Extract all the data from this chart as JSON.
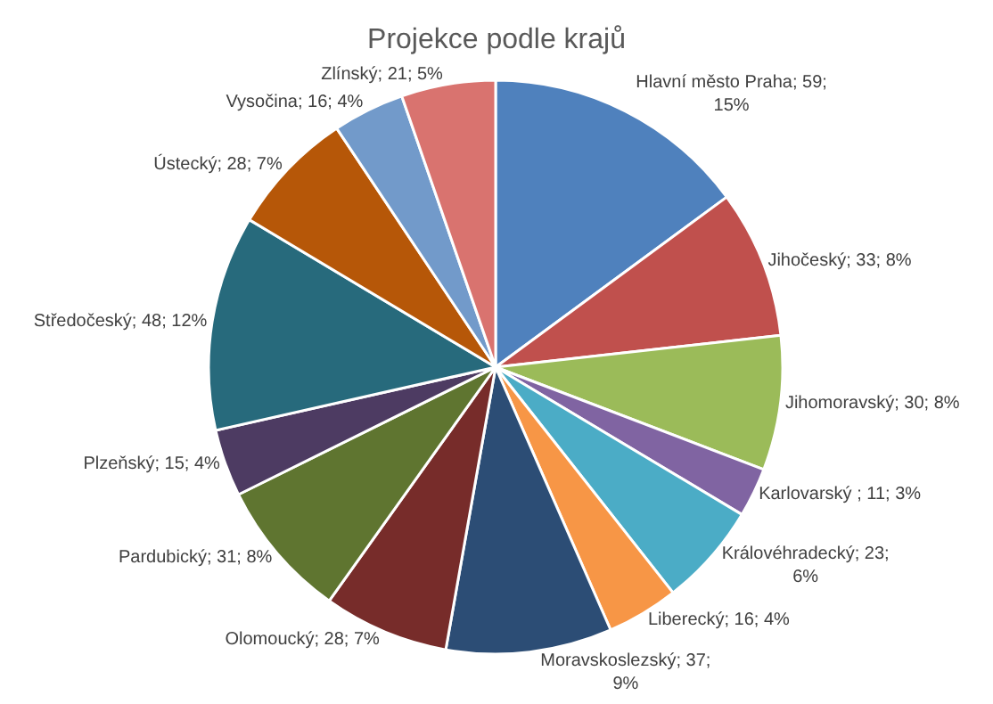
{
  "chart_data": {
    "type": "pie",
    "title": "Projekce podle krajů",
    "legend": false,
    "categories": [
      "Hlavní město Praha",
      "Jihočeský",
      "Jihomoravský",
      "Karlovarský ",
      "Královéhradecký",
      "Liberecký",
      "Moravskoslezský",
      "Olomoucký",
      "Pardubický",
      "Plzeňský",
      "Středočeský",
      "Ústecký",
      "Vysočina",
      "Zlínský"
    ],
    "values": [
      59,
      33,
      30,
      11,
      23,
      16,
      37,
      28,
      31,
      15,
      48,
      28,
      16,
      21
    ],
    "value_labels": [
      "59; 15%",
      "33; 8%",
      "30; 8%",
      "11; 3%",
      "23; 6%",
      "16; 4%",
      "37; 9%",
      "28; 7%",
      "31; 8%",
      "15; 4%",
      "48; 12%",
      "28; 7%",
      "16; 4%",
      "21; 5%"
    ],
    "colors": [
      "#4f81bd",
      "#c0504d",
      "#9bbb59",
      "#8064a2",
      "#4bacc6",
      "#f79646",
      "#2c4d75",
      "#772c2a",
      "#5f7530",
      "#4d3b62",
      "#276a7c",
      "#b65708",
      "#729aca",
      "#d9736f"
    ]
  }
}
